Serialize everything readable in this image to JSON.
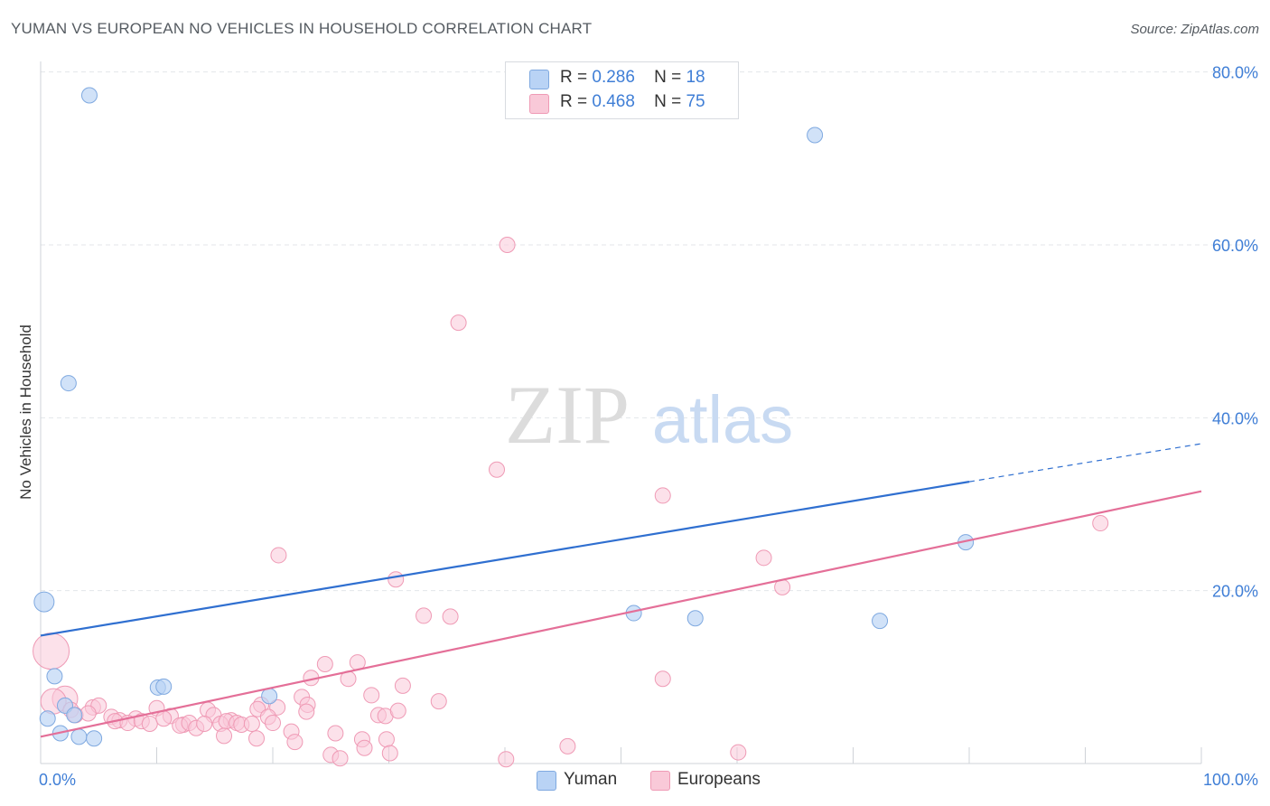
{
  "header": {
    "title": "YUMAN VS EUROPEAN NO VEHICLES IN HOUSEHOLD CORRELATION CHART",
    "source": "Source: ZipAtlas.com"
  },
  "watermark": {
    "zip": "ZIP",
    "atlas": "atlas"
  },
  "legend_top": {
    "rows": [
      {
        "r_label": "R =",
        "r_value": "0.286",
        "n_label": "N =",
        "n_value": "18"
      },
      {
        "r_label": "R =",
        "r_value": "0.468",
        "n_label": "N =",
        "n_value": "75"
      }
    ]
  },
  "legend_bottom": {
    "items": [
      "Yuman",
      "Europeans"
    ]
  },
  "colors": {
    "yuman_fill": "#b9d3f5",
    "yuman_stroke": "#7fa9e0",
    "yuman_line": "#2f6fd0",
    "europeans_fill": "#f9c9d8",
    "europeans_stroke": "#ef9ab5",
    "europeans_line": "#e46f98",
    "axis_label": "#3f7ed6",
    "grid": "#e3e6ea"
  },
  "chart_data": {
    "type": "scatter",
    "title": "YUMAN VS EUROPEAN NO VEHICLES IN HOUSEHOLD CORRELATION CHART",
    "xlabel": "",
    "ylabel": "No Vehicles in Household",
    "xlim": [
      0,
      100
    ],
    "ylim": [
      0,
      80
    ],
    "x_tick_labels": [
      "0.0%",
      "100.0%"
    ],
    "y_ticks": [
      20,
      40,
      60,
      80
    ],
    "y_tick_labels": [
      "20.0%",
      "40.0%",
      "60.0%",
      "80.0%"
    ],
    "series": [
      {
        "name": "Yuman",
        "r": 0.286,
        "n": 18,
        "points": [
          [
            4.2,
            77.3
          ],
          [
            66.7,
            72.7
          ],
          [
            2.4,
            44.0
          ],
          [
            0.3,
            18.7
          ],
          [
            79.7,
            25.6
          ],
          [
            51.1,
            17.4
          ],
          [
            56.4,
            16.8
          ],
          [
            72.3,
            16.5
          ],
          [
            1.2,
            10.1
          ],
          [
            10.1,
            8.8
          ],
          [
            10.6,
            8.9
          ],
          [
            19.7,
            7.8
          ],
          [
            2.1,
            6.7
          ],
          [
            2.9,
            5.6
          ],
          [
            0.6,
            5.2
          ],
          [
            1.7,
            3.5
          ],
          [
            3.3,
            3.1
          ],
          [
            4.6,
            2.9
          ]
        ],
        "trend": {
          "x0": 0,
          "y0": 14.8,
          "x1": 80,
          "y1": 32.6,
          "dash_to_x": 100,
          "dash_to_y": 37.0
        }
      },
      {
        "name": "Europeans",
        "r": 0.468,
        "n": 75,
        "points": [
          [
            40.2,
            60.0
          ],
          [
            36.0,
            51.0
          ],
          [
            39.3,
            34.0
          ],
          [
            53.6,
            31.0
          ],
          [
            91.3,
            27.8
          ],
          [
            20.5,
            24.1
          ],
          [
            62.3,
            23.8
          ],
          [
            30.6,
            21.3
          ],
          [
            63.9,
            20.4
          ],
          [
            33.0,
            17.1
          ],
          [
            35.3,
            17.0
          ],
          [
            0.9,
            13.0
          ],
          [
            23.3,
            9.9
          ],
          [
            27.3,
            11.7
          ],
          [
            26.5,
            9.8
          ],
          [
            31.2,
            9.0
          ],
          [
            53.6,
            9.8
          ],
          [
            24.5,
            11.5
          ],
          [
            22.5,
            7.7
          ],
          [
            28.5,
            7.9
          ],
          [
            34.3,
            7.2
          ],
          [
            23.0,
            6.8
          ],
          [
            19.0,
            6.8
          ],
          [
            2.1,
            7.5
          ],
          [
            1.1,
            7.2
          ],
          [
            2.6,
            6.2
          ],
          [
            4.5,
            6.5
          ],
          [
            5.0,
            6.7
          ],
          [
            6.1,
            5.4
          ],
          [
            6.8,
            5.0
          ],
          [
            8.2,
            5.2
          ],
          [
            10.0,
            6.4
          ],
          [
            11.2,
            5.5
          ],
          [
            12.3,
            4.5
          ],
          [
            14.4,
            6.2
          ],
          [
            14.9,
            5.6
          ],
          [
            16.4,
            5.0
          ],
          [
            18.7,
            6.3
          ],
          [
            20.4,
            6.5
          ],
          [
            22.9,
            6.0
          ],
          [
            29.1,
            5.6
          ],
          [
            29.7,
            5.5
          ],
          [
            30.8,
            6.1
          ],
          [
            3.0,
            5.6
          ],
          [
            4.1,
            5.8
          ],
          [
            6.4,
            4.9
          ],
          [
            7.5,
            4.7
          ],
          [
            8.7,
            4.9
          ],
          [
            9.4,
            4.6
          ],
          [
            10.6,
            5.2
          ],
          [
            12.0,
            4.4
          ],
          [
            12.8,
            4.7
          ],
          [
            13.4,
            4.1
          ],
          [
            14.1,
            4.6
          ],
          [
            15.5,
            4.6
          ],
          [
            16.0,
            4.9
          ],
          [
            16.9,
            4.7
          ],
          [
            17.3,
            4.5
          ],
          [
            18.2,
            4.6
          ],
          [
            19.6,
            5.4
          ],
          [
            20.0,
            4.7
          ],
          [
            21.6,
            3.7
          ],
          [
            15.8,
            3.2
          ],
          [
            18.6,
            2.9
          ],
          [
            21.9,
            2.5
          ],
          [
            25.4,
            3.5
          ],
          [
            25.0,
            1.0
          ],
          [
            25.8,
            0.6
          ],
          [
            27.7,
            2.8
          ],
          [
            27.9,
            1.8
          ],
          [
            29.8,
            2.8
          ],
          [
            30.1,
            1.2
          ],
          [
            40.1,
            0.5
          ],
          [
            45.4,
            2.0
          ],
          [
            60.1,
            1.3
          ]
        ],
        "trend": {
          "x0": 0,
          "y0": 3.1,
          "x1": 100,
          "y1": 31.5
        }
      }
    ]
  }
}
